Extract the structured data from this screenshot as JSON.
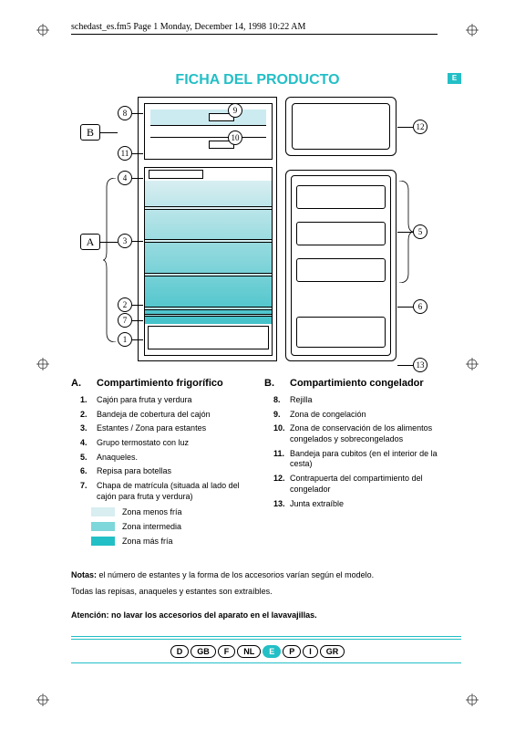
{
  "header_runner": "schedast_es.fm5  Page 1  Monday, December 14, 1998  10:22 AM",
  "title": "FICHA DEL PRODUCTO",
  "title_color": "#23bfc6",
  "lang_badge": "E",
  "lang_badge_bg": "#23bfc6",
  "section_a": {
    "letter": "A.",
    "title": "Compartimiento frigorífico",
    "items": [
      "Cajón para fruta y verdura",
      "Bandeja de cobertura del cajón",
      "Estantes / Zona para estantes",
      "Grupo termostato con luz",
      "Anaqueles.",
      "Repisa para botellas",
      "Chapa de matrícula (situada al lado del cajón para fruta y verdura)"
    ]
  },
  "section_b": {
    "letter": "B.",
    "title": "Compartimiento congelador",
    "items": [
      "Rejilla",
      "Zona de congelación",
      "Zona de conservación de los alimentos congelados y sobrecongelados",
      "Bandeja para cubitos (en el interior de la cesta)",
      "Contrapuerta del compartimiento del congelador",
      "Junta extraíble"
    ],
    "start_number": 8
  },
  "legend": [
    {
      "label": "Zona menos fría",
      "color": "#d8eef1"
    },
    {
      "label": "Zona intermedia",
      "color": "#7dd7db"
    },
    {
      "label": "Zona más fría",
      "color": "#23bfc6"
    }
  ],
  "notes_label": "Notas:",
  "notes_body_1": " el número de estantes y la forma de los accesorios varían según el modelo.",
  "notes_body_2": "Todas las repisas, anaqueles y estantes son extraíbles.",
  "warning_label": "Atención: no lavar los accesorios del aparato en el lavavajillas.",
  "languages": [
    "D",
    "GB",
    "F",
    "NL",
    "E",
    "P",
    "I",
    "GR"
  ],
  "active_lang": "E",
  "callout_circles": {
    "1": "1",
    "2": "2",
    "3": "3",
    "4": "4",
    "5": "5",
    "6": "6",
    "7": "7",
    "8": "8",
    "9": "9",
    "10": "10",
    "11": "11",
    "12": "12",
    "13": "13"
  },
  "callout_letters": {
    "A": "A",
    "B": "B"
  },
  "colors": {
    "accent": "#23bfc6",
    "freezer_zone": "#ccebf0",
    "gradient_top": "#d8eef1",
    "gradient_bottom": "#43c2c9"
  }
}
